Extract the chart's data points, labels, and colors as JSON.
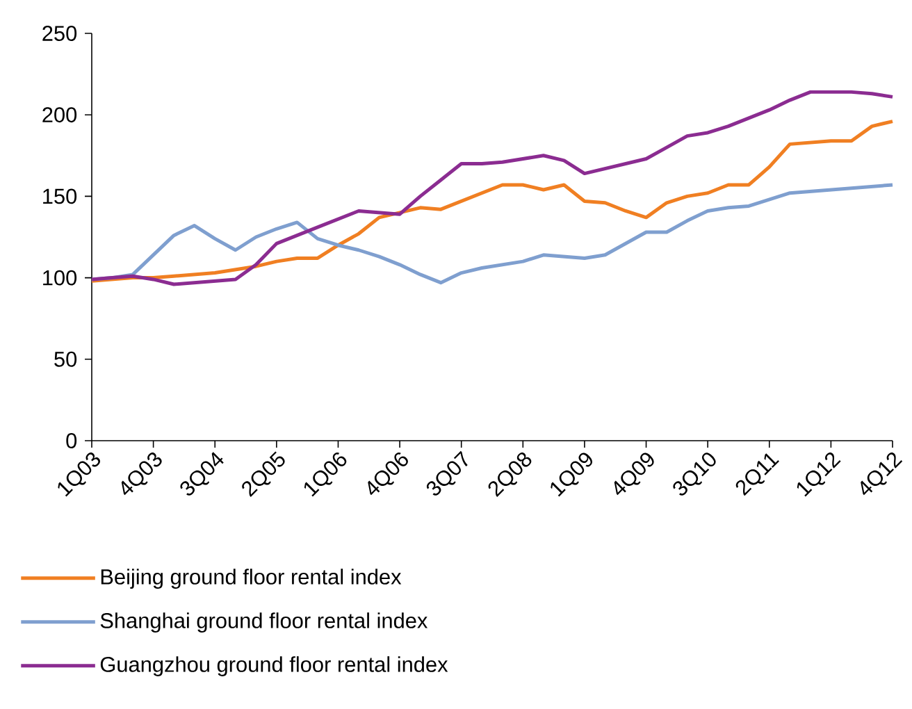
{
  "chart_data": {
    "type": "line",
    "categories": [
      "1Q03",
      null,
      null,
      "4Q03",
      null,
      null,
      "3Q04",
      null,
      null,
      "2Q05",
      null,
      null,
      "1Q06",
      null,
      null,
      "4Q06",
      null,
      null,
      "3Q07",
      null,
      null,
      "2Q08",
      null,
      null,
      "1Q09",
      null,
      null,
      "4Q09",
      null,
      null,
      "3Q10",
      null,
      null,
      "2Q11",
      null,
      null,
      "1Q12",
      null,
      null,
      "4Q12"
    ],
    "series": [
      {
        "name": "Beijing ground floor rental index",
        "color": "#f07f22",
        "values": [
          98,
          99,
          100,
          100,
          101,
          102,
          103,
          105,
          107,
          110,
          112,
          112,
          120,
          127,
          137,
          140,
          143,
          142,
          147,
          152,
          157,
          157,
          154,
          157,
          147,
          146,
          141,
          137,
          146,
          150,
          152,
          157,
          157,
          168,
          182,
          183,
          184,
          184,
          193,
          196
        ]
      },
      {
        "name": "Shanghai ground floor rental index",
        "color": "#7f9fcf",
        "values": [
          99,
          100,
          102,
          114,
          126,
          132,
          124,
          117,
          125,
          130,
          134,
          124,
          120,
          117,
          113,
          108,
          102,
          97,
          103,
          106,
          108,
          110,
          114,
          113,
          112,
          114,
          121,
          128,
          128,
          135,
          141,
          143,
          144,
          148,
          152,
          153,
          154,
          155,
          156,
          157
        ]
      },
      {
        "name": "Guangzhou ground floor rental index",
        "color": "#8b2c91",
        "values": [
          99,
          100,
          101,
          99,
          96,
          97,
          98,
          99,
          108,
          121,
          126,
          131,
          136,
          141,
          140,
          139,
          150,
          160,
          170,
          170,
          171,
          173,
          175,
          172,
          164,
          167,
          170,
          173,
          180,
          187,
          189,
          193,
          198,
          203,
          209,
          214,
          214,
          214,
          213,
          211
        ]
      }
    ],
    "ylim": [
      0,
      250
    ],
    "yticks": [
      0,
      50,
      100,
      150,
      200,
      250
    ],
    "grid": false,
    "legend": "bottom",
    "line_style": "solid",
    "marker": "none"
  }
}
